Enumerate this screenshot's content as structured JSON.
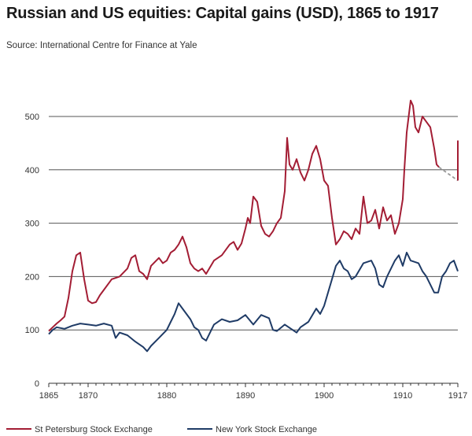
{
  "title": "Russian and US equities: Capital gains (USD), 1865 to 1917",
  "subtitle": "Source: International Centre for Finance at Yale",
  "colors": {
    "russia": "#a31d34",
    "us": "#1f3b66",
    "grid": "#555555",
    "dashed": "#999999"
  },
  "chart_data": {
    "type": "line",
    "title": "Russian and US equities: Capital gains (USD), 1865 to 1917",
    "xlabel": "",
    "ylabel": "",
    "xlim": [
      1865,
      1917
    ],
    "ylim": [
      0,
      550
    ],
    "x_ticks": [
      1865,
      1870,
      1880,
      1890,
      1900,
      1910,
      1917
    ],
    "y_ticks": [
      0,
      100,
      200,
      300,
      400,
      500
    ],
    "grid": "horizontal",
    "legend": "bottom",
    "series": [
      {
        "name": "St Petersburg Stock Exchange",
        "x": [
          1865,
          1865.5,
          1866,
          1866.5,
          1867,
          1867.5,
          1868,
          1868.5,
          1869,
          1869.5,
          1870,
          1870.5,
          1871,
          1871.5,
          1872,
          1873,
          1874,
          1875,
          1875.5,
          1876,
          1876.5,
          1877,
          1877.5,
          1878,
          1879,
          1879.5,
          1880,
          1880.5,
          1881,
          1881.5,
          1882,
          1882.5,
          1883,
          1883.5,
          1884,
          1884.5,
          1885,
          1886,
          1887,
          1888,
          1888.5,
          1889,
          1889.5,
          1890,
          1890.3,
          1890.6,
          1891,
          1891.5,
          1892,
          1892.5,
          1893,
          1893.5,
          1894,
          1894.5,
          1895,
          1895.3,
          1895.6,
          1896,
          1896.5,
          1897,
          1897.5,
          1898,
          1898.5,
          1899,
          1899.5,
          1900,
          1900.5,
          1901,
          1901.5,
          1902,
          1902.5,
          1903,
          1903.5,
          1904,
          1904.5,
          1905,
          1905.5,
          1906,
          1906.5,
          1907,
          1907.5,
          1908,
          1908.5,
          1909,
          1909.5,
          1910,
          1910.2,
          1910.5,
          1911,
          1911.3,
          1911.6,
          1912,
          1912.5,
          1913,
          1913.5,
          1914,
          1914.3,
          1914.6
        ],
        "values": [
          98,
          105,
          112,
          118,
          125,
          160,
          210,
          240,
          245,
          195,
          155,
          150,
          152,
          165,
          175,
          195,
          200,
          215,
          235,
          240,
          210,
          205,
          195,
          220,
          235,
          225,
          230,
          245,
          250,
          260,
          275,
          255,
          225,
          215,
          210,
          215,
          205,
          230,
          240,
          260,
          265,
          250,
          262,
          290,
          310,
          300,
          350,
          340,
          295,
          280,
          275,
          285,
          300,
          310,
          360,
          460,
          410,
          400,
          420,
          395,
          380,
          400,
          430,
          445,
          420,
          380,
          370,
          310,
          260,
          270,
          285,
          280,
          270,
          290,
          280,
          350,
          300,
          305,
          325,
          290,
          330,
          305,
          315,
          280,
          300,
          345,
          400,
          470,
          530,
          520,
          480,
          470,
          500,
          490,
          480,
          440,
          410,
          405
        ]
      },
      {
        "name": "New York Stock Exchange",
        "x": [
          1865,
          1865.5,
          1866,
          1867,
          1868,
          1869,
          1870,
          1871,
          1872,
          1873,
          1873.5,
          1874,
          1875,
          1876,
          1877,
          1877.5,
          1878,
          1879,
          1880,
          1880.5,
          1881,
          1881.5,
          1882,
          1883,
          1883.5,
          1884,
          1884.5,
          1885,
          1885.5,
          1886,
          1887,
          1888,
          1889,
          1890,
          1891,
          1892,
          1893,
          1893.5,
          1894,
          1895,
          1896,
          1896.5,
          1897,
          1898,
          1899,
          1899.5,
          1900,
          1901,
          1901.5,
          1902,
          1902.5,
          1903,
          1903.5,
          1904,
          1905,
          1906,
          1906.5,
          1907,
          1907.5,
          1908,
          1909,
          1909.5,
          1910,
          1910.5,
          1911,
          1912,
          1912.5,
          1913,
          1913.5,
          1914,
          1914.5,
          1915,
          1915.5,
          1916,
          1916.5,
          1917
        ],
        "values": [
          92,
          100,
          105,
          102,
          108,
          112,
          110,
          108,
          112,
          108,
          85,
          95,
          90,
          78,
          68,
          60,
          70,
          85,
          100,
          115,
          130,
          150,
          140,
          120,
          105,
          100,
          85,
          80,
          95,
          110,
          120,
          115,
          118,
          128,
          110,
          128,
          122,
          100,
          98,
          110,
          100,
          95,
          105,
          115,
          140,
          130,
          145,
          195,
          220,
          230,
          215,
          210,
          195,
          200,
          225,
          230,
          215,
          185,
          180,
          200,
          230,
          240,
          220,
          245,
          230,
          225,
          210,
          200,
          185,
          170,
          170,
          200,
          210,
          225,
          230,
          210
        ]
      }
    ],
    "dashed_segment": {
      "x": [
        1914.6,
        1917
      ],
      "values": [
        405,
        380
      ]
    },
    "final_spike": {
      "x": [
        1917,
        1917
      ],
      "values": [
        380,
        455
      ]
    }
  },
  "legend": {
    "russia_label": "St Petersburg Stock Exchange",
    "us_label": "New York Stock Exchange"
  }
}
